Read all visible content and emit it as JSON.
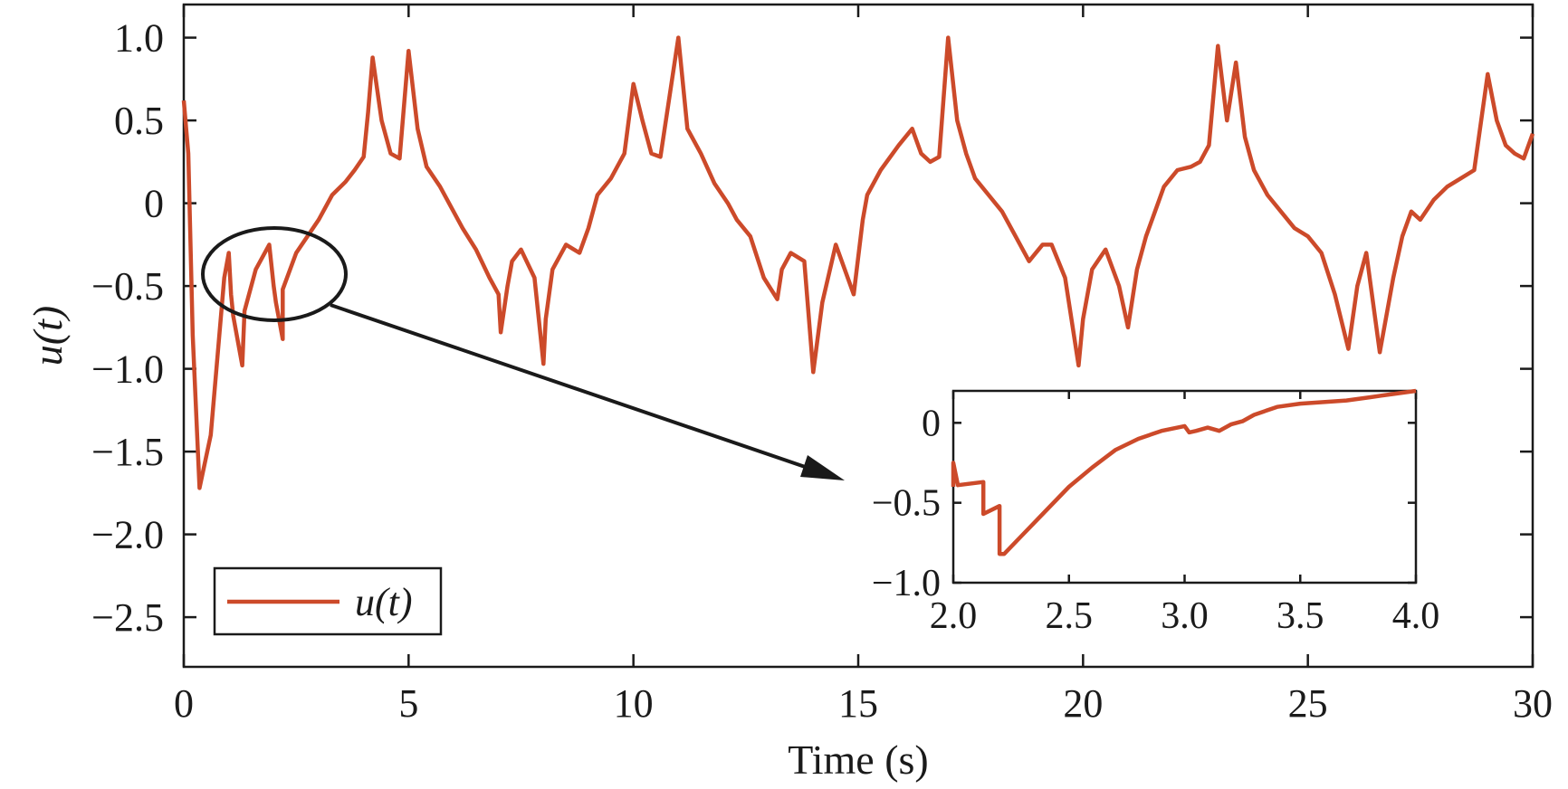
{
  "chart_data": [
    {
      "type": "line",
      "xlabel": "Time (s)",
      "ylabel": "u(t)",
      "xlim": [
        0,
        30
      ],
      "ylim": [
        -2.8,
        1.2
      ],
      "xticks": [
        "0",
        "5",
        "10",
        "15",
        "20",
        "25",
        "30"
      ],
      "yticks": [
        "1.0",
        "0.5",
        "0",
        "−0.5",
        "−1.0",
        "−1.5",
        "−2.0",
        "−2.5"
      ],
      "grid": false,
      "legend": {
        "position": "bottom-left",
        "entries": [
          "u(t)"
        ]
      },
      "series": [
        {
          "name": "u(t)",
          "color": "#cc4a2a",
          "x": [
            0,
            0.1,
            0.2,
            0.35,
            0.6,
            0.9,
            1.0,
            1.05,
            1.1,
            1.3,
            1.35,
            1.6,
            1.9,
            2.0,
            2.05,
            2.2,
            2.2,
            2.5,
            3.0,
            3.3,
            3.6,
            3.8,
            4.0,
            4.1,
            4.2,
            4.4,
            4.6,
            4.8,
            5.0,
            5.2,
            5.4,
            5.7,
            6.0,
            6.2,
            6.5,
            6.8,
            7.0,
            7.05,
            7.2,
            7.3,
            7.5,
            7.8,
            8.0,
            8.05,
            8.2,
            8.5,
            8.8,
            9.0,
            9.2,
            9.5,
            9.8,
            10.0,
            10.2,
            10.4,
            10.6,
            11.0,
            11.2,
            11.5,
            11.8,
            12.1,
            12.3,
            12.6,
            12.9,
            13.2,
            13.3,
            13.5,
            13.8,
            14.0,
            14.2,
            14.5,
            14.9,
            15.1,
            15.2,
            15.5,
            15.9,
            16.2,
            16.4,
            16.6,
            16.8,
            17.0,
            17.2,
            17.4,
            17.6,
            17.9,
            18.2,
            18.5,
            18.8,
            19.1,
            19.3,
            19.6,
            19.9,
            20.0,
            20.2,
            20.5,
            20.8,
            21.0,
            21.2,
            21.4,
            21.6,
            21.8,
            22.1,
            22.4,
            22.6,
            22.8,
            23.0,
            23.2,
            23.4,
            23.6,
            23.8,
            24.1,
            24.4,
            24.7,
            25.0,
            25.3,
            25.6,
            25.9,
            26.1,
            26.3,
            26.6,
            26.9,
            27.1,
            27.3,
            27.5,
            27.8,
            28.1,
            28.4,
            28.7,
            29.0,
            29.2,
            29.4,
            29.6,
            29.8,
            30.0
          ],
          "values": [
            0.62,
            0.3,
            -0.8,
            -1.72,
            -1.4,
            -0.45,
            -0.3,
            -0.55,
            -0.68,
            -0.98,
            -0.65,
            -0.4,
            -0.25,
            -0.5,
            -0.6,
            -0.82,
            -0.52,
            -0.3,
            -0.1,
            0.05,
            0.13,
            0.2,
            0.28,
            0.55,
            0.88,
            0.5,
            0.3,
            0.27,
            0.92,
            0.45,
            0.22,
            0.1,
            -0.05,
            -0.15,
            -0.28,
            -0.45,
            -0.55,
            -0.78,
            -0.5,
            -0.35,
            -0.28,
            -0.45,
            -0.97,
            -0.7,
            -0.4,
            -0.25,
            -0.3,
            -0.15,
            0.05,
            0.15,
            0.3,
            0.72,
            0.5,
            0.3,
            0.28,
            1.0,
            0.45,
            0.3,
            0.12,
            0.0,
            -0.1,
            -0.2,
            -0.45,
            -0.58,
            -0.4,
            -0.3,
            -0.35,
            -1.02,
            -0.6,
            -0.25,
            -0.55,
            -0.1,
            0.05,
            0.2,
            0.35,
            0.45,
            0.3,
            0.25,
            0.28,
            1.0,
            0.5,
            0.3,
            0.15,
            0.05,
            -0.05,
            -0.2,
            -0.35,
            -0.25,
            -0.25,
            -0.45,
            -0.98,
            -0.7,
            -0.4,
            -0.28,
            -0.5,
            -0.75,
            -0.4,
            -0.2,
            -0.05,
            0.1,
            0.2,
            0.22,
            0.25,
            0.35,
            0.95,
            0.5,
            0.85,
            0.4,
            0.2,
            0.05,
            -0.05,
            -0.15,
            -0.2,
            -0.3,
            -0.55,
            -0.88,
            -0.5,
            -0.3,
            -0.9,
            -0.45,
            -0.2,
            -0.05,
            -0.1,
            0.02,
            0.1,
            0.15,
            0.2,
            0.78,
            0.5,
            0.35,
            0.3,
            0.27,
            0.42
          ]
        }
      ]
    },
    {
      "type": "line",
      "xlim": [
        2.0,
        4.0
      ],
      "ylim": [
        -1.0,
        0.2
      ],
      "xticks": [
        "2.0",
        "2.5",
        "3.0",
        "3.5",
        "4.0"
      ],
      "yticks": [
        "0",
        "−0.5",
        "−1.0"
      ],
      "grid": false,
      "series": [
        {
          "color": "#cc4a2a",
          "x": [
            2.0,
            2.0,
            2.02,
            2.13,
            2.13,
            2.2,
            2.2,
            2.22,
            2.3,
            2.4,
            2.5,
            2.6,
            2.7,
            2.8,
            2.9,
            3.0,
            3.02,
            3.05,
            3.1,
            3.15,
            3.2,
            3.25,
            3.3,
            3.4,
            3.5,
            3.6,
            3.7,
            3.8,
            3.9,
            4.0
          ],
          "values": [
            -0.4,
            -0.25,
            -0.39,
            -0.37,
            -0.57,
            -0.52,
            -0.82,
            -0.82,
            -0.7,
            -0.55,
            -0.4,
            -0.28,
            -0.17,
            -0.1,
            -0.05,
            -0.02,
            -0.06,
            -0.05,
            -0.03,
            -0.05,
            -0.01,
            0.01,
            0.05,
            0.1,
            0.12,
            0.13,
            0.14,
            0.16,
            0.18,
            0.2
          ]
        }
      ]
    }
  ]
}
